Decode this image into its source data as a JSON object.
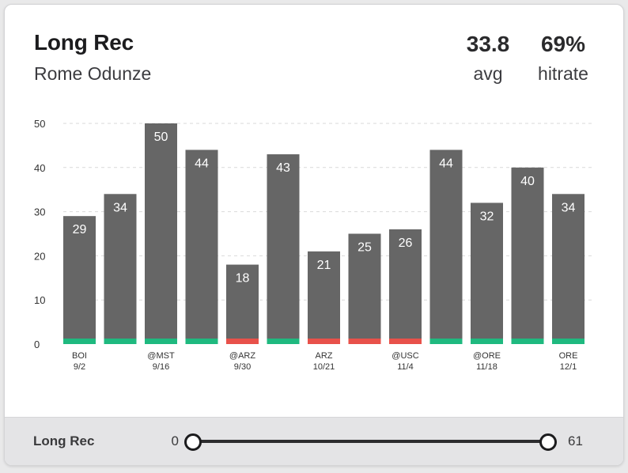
{
  "header": {
    "title": "Long Rec",
    "player": "Rome Odunze",
    "avg_value": "33.8",
    "avg_label": "avg",
    "hit_value": "69%",
    "hit_label": "hitrate"
  },
  "footer": {
    "label": "Long Rec",
    "min": "0",
    "max": "61",
    "range_low": 0,
    "range_high": 61
  },
  "colors": {
    "bar": "#666666",
    "hit": "#1fb97f",
    "miss": "#e8514a",
    "grid": "#d9d9d9",
    "axis_text": "#333333"
  },
  "chart_data": {
    "type": "bar",
    "title": "",
    "xlabel": "",
    "ylabel": "",
    "ylim": [
      0,
      50
    ],
    "yticks": [
      0,
      10,
      20,
      30,
      40,
      50
    ],
    "grid": true,
    "categories": [
      {
        "opp": "BOI",
        "date": "9/2"
      },
      {
        "opp": "",
        "date": ""
      },
      {
        "opp": "@MST",
        "date": "9/16"
      },
      {
        "opp": "",
        "date": ""
      },
      {
        "opp": "@ARZ",
        "date": "9/30"
      },
      {
        "opp": "",
        "date": ""
      },
      {
        "opp": "ARZ",
        "date": "10/21"
      },
      {
        "opp": "",
        "date": ""
      },
      {
        "opp": "@USC",
        "date": "11/4"
      },
      {
        "opp": "",
        "date": ""
      },
      {
        "opp": "@ORE",
        "date": "11/18"
      },
      {
        "opp": "",
        "date": ""
      },
      {
        "opp": "ORE",
        "date": "12/1"
      }
    ],
    "values": [
      29,
      34,
      50,
      44,
      18,
      43,
      21,
      25,
      26,
      44,
      32,
      40,
      34
    ],
    "results": [
      "hit",
      "hit",
      "hit",
      "hit",
      "miss",
      "hit",
      "miss",
      "miss",
      "miss",
      "hit",
      "hit",
      "hit",
      "hit"
    ]
  }
}
